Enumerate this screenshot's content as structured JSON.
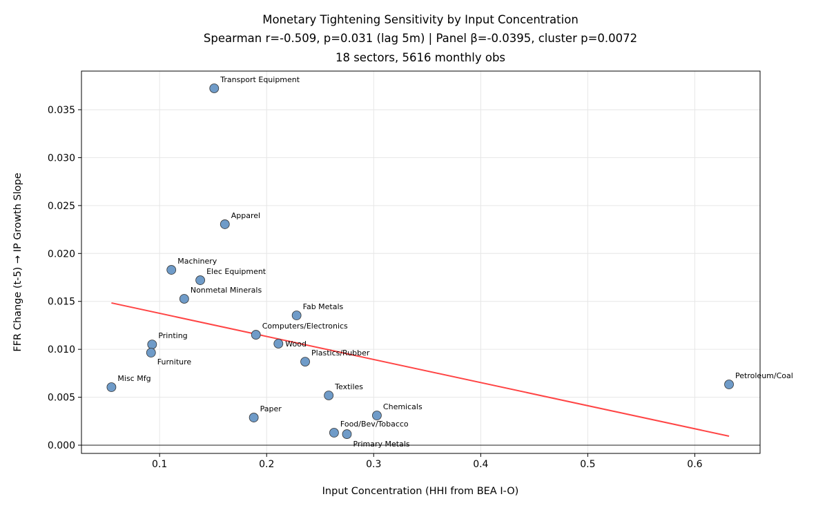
{
  "chart_data": {
    "type": "scatter",
    "title": [
      "Monetary Tightening Sensitivity by Input Concentration",
      "Spearman r=-0.509, p=0.031 (lag 5m) | Panel β=-0.0395, cluster p=0.0072",
      "18 sectors, 5616 monthly obs"
    ],
    "xlabel": "Input Concentration (HHI from BEA I-O)",
    "ylabel": "FFR Change (t-5) → IP Growth Slope",
    "xlim": [
      0.027,
      0.661
    ],
    "ylim": [
      -0.00086,
      0.03903
    ],
    "xticks": [
      0.1,
      0.2,
      0.3,
      0.4,
      0.5,
      0.6
    ],
    "xtick_labels": [
      "0.1",
      "0.2",
      "0.3",
      "0.4",
      "0.5",
      "0.6"
    ],
    "yticks": [
      0,
      0.005,
      0.01,
      0.015,
      0.02,
      0.025,
      0.03,
      0.035
    ],
    "ytick_labels": [
      "0.000",
      "0.005",
      "0.010",
      "0.015",
      "0.020",
      "0.025",
      "0.030",
      "0.035"
    ],
    "grid": true,
    "point_color": "#6f9bc8",
    "point_edge_color": "#333333",
    "fit_color": "#ff4444",
    "points": [
      {
        "label": "Transport Equipment",
        "x": 0.151,
        "y": 0.03723
      },
      {
        "label": "Apparel",
        "x": 0.161,
        "y": 0.02305
      },
      {
        "label": "Machinery",
        "x": 0.111,
        "y": 0.01829
      },
      {
        "label": "Elec Equipment",
        "x": 0.138,
        "y": 0.01721
      },
      {
        "label": "Nonmetal Minerals",
        "x": 0.123,
        "y": 0.01527
      },
      {
        "label": "Fab Metals",
        "x": 0.228,
        "y": 0.01354
      },
      {
        "label": "Computers/Electronics",
        "x": 0.19,
        "y": 0.01152
      },
      {
        "label": "Wood",
        "x": 0.211,
        "y": 0.01059
      },
      {
        "label": "Printing",
        "x": 0.093,
        "y": 0.01051
      },
      {
        "label": "Furniture",
        "x": 0.092,
        "y": 0.00965
      },
      {
        "label": "Plastics/Rubber",
        "x": 0.236,
        "y": 0.00871
      },
      {
        "label": "Misc Mfg",
        "x": 0.055,
        "y": 0.00605
      },
      {
        "label": "Petroleum/Coal",
        "x": 0.632,
        "y": 0.00634
      },
      {
        "label": "Textiles",
        "x": 0.258,
        "y": 0.00519
      },
      {
        "label": "Chemicals",
        "x": 0.303,
        "y": 0.0031
      },
      {
        "label": "Paper",
        "x": 0.188,
        "y": 0.00288
      },
      {
        "label": "Food/Bev/Tobacco",
        "x": 0.263,
        "y": 0.0013
      },
      {
        "label": "Primary Metals",
        "x": 0.275,
        "y": 0.00115
      }
    ],
    "fit_line": {
      "x": [
        0.055,
        0.632
      ],
      "y": [
        0.01484,
        0.00094
      ]
    },
    "hline_y": 0
  }
}
